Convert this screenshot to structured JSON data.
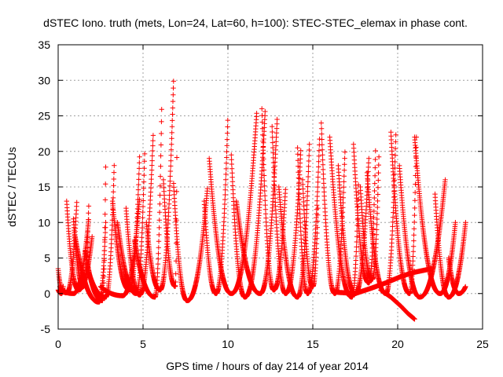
{
  "chart_data": {
    "type": "scatter",
    "title": "dSTEC Iono. truth (mets, Lon=24, Lat=60, h=100): STEC-STEC_elemax in phase cont.",
    "xlabel": "GPS time / hours of day 214 of year 2014",
    "ylabel": "dSTEC  / TECUs",
    "xlim": [
      0,
      25
    ],
    "ylim": [
      -5,
      35
    ],
    "xticks": [
      0,
      5,
      10,
      15,
      20,
      25
    ],
    "yticks": [
      -5,
      0,
      5,
      10,
      15,
      20,
      25,
      30,
      35
    ],
    "grid": true,
    "legend": "none",
    "marker": "plus",
    "color": "#ff0000",
    "passes": [
      {
        "start": 0.0,
        "peak": 0.3,
        "end": 0.4,
        "start_val": 3.5,
        "min_val": 0.2,
        "end_val": 0.5
      },
      {
        "start": 0.0,
        "peak": 0.2,
        "end": 0.3,
        "start_val": 0.5,
        "min_val": 0.0,
        "end_val": 1.0
      },
      {
        "start": 0.1,
        "peak": 0.5,
        "end": 1.1,
        "start_val": 1.0,
        "min_val": 0.1,
        "end_val": 13.0
      },
      {
        "start": 0.2,
        "peak": 0.9,
        "end": 1.8,
        "start_val": 0.5,
        "min_val": 0.0,
        "end_val": 10.5
      },
      {
        "start": 0.5,
        "peak": 1.2,
        "end": 2.0,
        "start_val": 13.0,
        "min_val": 0.5,
        "end_val": 8.0
      },
      {
        "start": 0.9,
        "peak": 1.5,
        "end": 1.8,
        "start_val": 10.5,
        "min_val": 1.0,
        "end_val": 12.3
      },
      {
        "start": 1.0,
        "peak": 2.4,
        "end": 2.8,
        "start_val": 8.0,
        "min_val": -1.2,
        "end_val": 10.0
      },
      {
        "start": 1.6,
        "peak": 2.6,
        "end": 2.8,
        "start_val": 6.0,
        "min_val": -1.0,
        "end_val": 17.8
      },
      {
        "start": 1.8,
        "peak": 2.8,
        "end": 3.3,
        "start_val": 3.0,
        "min_val": -0.5,
        "end_val": 18.0
      },
      {
        "start": 2.5,
        "peak": 3.8,
        "end": 4.8,
        "start_val": 1.0,
        "min_val": -0.3,
        "end_val": 13.5
      },
      {
        "start": 3.2,
        "peak": 4.2,
        "end": 4.8,
        "start_val": 13.0,
        "min_val": 0.5,
        "end_val": 19.5
      },
      {
        "start": 3.5,
        "peak": 4.6,
        "end": 5.1,
        "start_val": 10.0,
        "min_val": 0.0,
        "end_val": 20.0
      },
      {
        "start": 4.0,
        "peak": 4.8,
        "end": 5.6,
        "start_val": 12.0,
        "min_val": -0.2,
        "end_val": 22.5
      },
      {
        "start": 4.5,
        "peak": 5.7,
        "end": 6.1,
        "start_val": 7.5,
        "min_val": -0.5,
        "end_val": 26.5
      },
      {
        "start": 5.2,
        "peak": 6.0,
        "end": 6.8,
        "start_val": 10.0,
        "min_val": 0.5,
        "end_val": 30.2
      },
      {
        "start": 6.2,
        "peak": 6.9,
        "end": 7.0,
        "start_val": 16.0,
        "min_val": 1.0,
        "end_val": 22.8
      },
      {
        "start": 6.8,
        "peak": 7.6,
        "end": 8.8,
        "start_val": 15.5,
        "min_val": -1.0,
        "end_val": 15.0
      },
      {
        "start": 8.6,
        "peak": 9.3,
        "end": 10.0,
        "start_val": 13.0,
        "min_val": 0.0,
        "end_val": 25.0
      },
      {
        "start": 8.9,
        "peak": 10.2,
        "end": 11.7,
        "start_val": 19.0,
        "min_val": 0.0,
        "end_val": 25.5
      },
      {
        "start": 10.2,
        "peak": 11.0,
        "end": 12.2,
        "start_val": 19.5,
        "min_val": -0.5,
        "end_val": 26.0
      },
      {
        "start": 10.5,
        "peak": 11.9,
        "end": 12.9,
        "start_val": 13.0,
        "min_val": 0.0,
        "end_val": 24.5
      },
      {
        "start": 12.0,
        "peak": 12.7,
        "end": 13.4,
        "start_val": 26.0,
        "min_val": 0.5,
        "end_val": 15.0
      },
      {
        "start": 12.6,
        "peak": 13.4,
        "end": 14.3,
        "start_val": 23.5,
        "min_val": 0.0,
        "end_val": 20.5
      },
      {
        "start": 13.0,
        "peak": 14.1,
        "end": 14.8,
        "start_val": 15.0,
        "min_val": -0.5,
        "end_val": 21.0
      },
      {
        "start": 14.1,
        "peak": 14.7,
        "end": 15.4,
        "start_val": 20.5,
        "min_val": 0.0,
        "end_val": 22.0
      },
      {
        "start": 14.4,
        "peak": 15.0,
        "end": 15.3,
        "start_val": 16.0,
        "min_val": 1.0,
        "end_val": 12.0
      },
      {
        "start": 15.5,
        "peak": 16.3,
        "end": 16.9,
        "start_val": 24.0,
        "min_val": 0.0,
        "end_val": 20.5
      },
      {
        "start": 16.0,
        "peak": 17.3,
        "end": 17.7,
        "start_val": 22.0,
        "min_val": -0.5,
        "end_val": 16.0
      },
      {
        "start": 16.5,
        "peak": 17.5,
        "end": 18.3,
        "start_val": 18.0,
        "min_val": 0.0,
        "end_val": 19.0
      },
      {
        "start": 17.4,
        "peak": 18.3,
        "end": 18.7,
        "start_val": 21.0,
        "min_val": 1.5,
        "end_val": 20.5
      },
      {
        "start": 17.8,
        "peak": 18.5,
        "end": 18.9,
        "start_val": 15.0,
        "min_val": 2.0,
        "end_val": 20.0
      },
      {
        "start": 18.2,
        "peak": 19.3,
        "end": 19.9,
        "start_val": 17.0,
        "min_val": 0.0,
        "end_val": 23.0
      },
      {
        "start": 19.6,
        "peak": 20.7,
        "end": 21.1,
        "start_val": 22.7,
        "min_val": 0.0,
        "end_val": 22.0
      },
      {
        "start": 20.1,
        "peak": 21.3,
        "end": 22.8,
        "start_val": 18.0,
        "min_val": -0.5,
        "end_val": 16.0
      },
      {
        "start": 21.0,
        "peak": 22.5,
        "end": 23.4,
        "start_val": 22.0,
        "min_val": 0.0,
        "end_val": 10.0
      },
      {
        "start": 22.2,
        "peak": 23.0,
        "end": 24.0,
        "start_val": 14.0,
        "min_val": -0.5,
        "end_val": 10.0
      },
      {
        "start": 23.0,
        "peak": 23.6,
        "end": 24.0,
        "start_val": 5.0,
        "min_val": 0.0,
        "end_val": 1.0
      }
    ],
    "extra_traces": [
      {
        "points": [
          [
            16.3,
            0.2
          ],
          [
            17.5,
            0.0
          ],
          [
            18.5,
            0.8
          ],
          [
            19.3,
            1.5
          ],
          [
            20.3,
            2.5
          ],
          [
            21.0,
            3.0
          ],
          [
            22.0,
            3.5
          ]
        ]
      },
      {
        "points": [
          [
            19.0,
            0.5
          ],
          [
            19.6,
            -0.5
          ],
          [
            20.2,
            -1.8
          ],
          [
            20.6,
            -2.8
          ],
          [
            21.0,
            -3.6
          ]
        ]
      }
    ]
  }
}
